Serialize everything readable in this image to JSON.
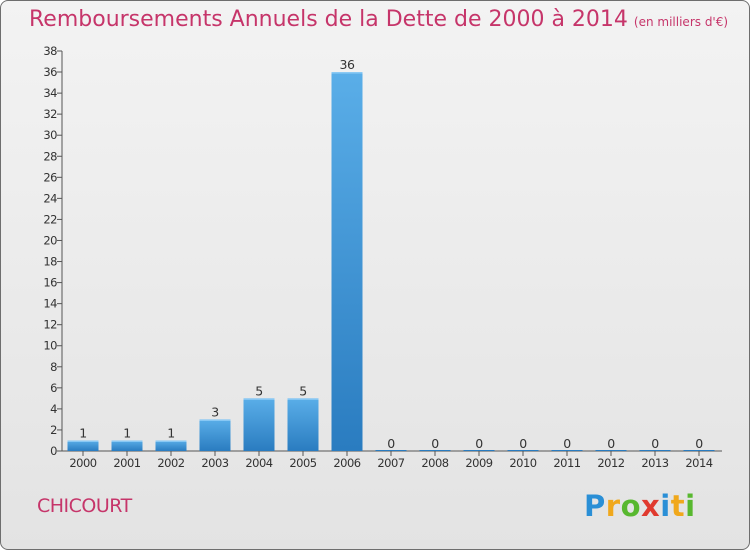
{
  "header": {
    "title": "Remboursements Annuels de la Dette de 2000 à 2014",
    "unit": "(en milliers d'€)"
  },
  "footer": {
    "place": "CHICOURT",
    "logo": "Proxiti"
  },
  "colors": {
    "title": "#c6356a",
    "bar_top": "#5aaee8",
    "bar_bottom": "#2a7cc0"
  },
  "chart_data": {
    "type": "bar",
    "title": "Remboursements Annuels de la Dette de 2000 à 2014",
    "subtitle": "(en milliers d'€)",
    "xlabel": "",
    "ylabel": "",
    "categories": [
      "2000",
      "2001",
      "2002",
      "2003",
      "2004",
      "2005",
      "2006",
      "2007",
      "2008",
      "2009",
      "2010",
      "2011",
      "2012",
      "2013",
      "2014"
    ],
    "values": [
      1,
      1,
      1,
      3,
      5,
      5,
      36,
      0,
      0,
      0,
      0,
      0,
      0,
      0,
      0
    ],
    "ylim": [
      0,
      38
    ],
    "yticks": [
      0,
      2,
      4,
      6,
      8,
      10,
      12,
      14,
      16,
      18,
      20,
      22,
      24,
      26,
      28,
      30,
      32,
      34,
      36,
      38
    ],
    "data_labels": true,
    "grid": false,
    "legend": "none"
  }
}
